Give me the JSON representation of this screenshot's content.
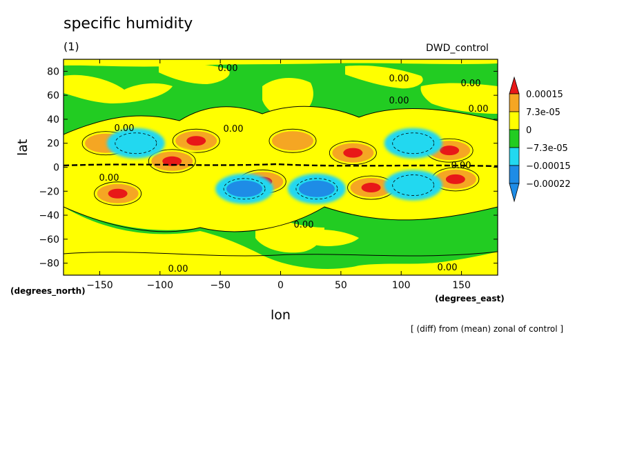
{
  "header": {
    "title": "specific humidity",
    "subtitle": "(1)",
    "run_label": "DWD_control"
  },
  "axes": {
    "xlabel": "lon",
    "ylabel": "lat",
    "x_unit": "(degrees_east)",
    "y_unit": "(degrees_north)"
  },
  "footnote": "[ (diff) from (mean) zonal of control ]",
  "colors": {
    "lt_neg_0.00022": "#1e8ce6",
    "neg_0.00022_to_neg_0.00015": "#1e8ce6",
    "neg_0.00015_to_neg_7.3e-05": "#22d8f0",
    "neg_7.3e-05_to_0": "#22cc22",
    "0_to_7.3e-05": "#ffff00",
    "7.3e-05_to_0.00015": "#f5a623",
    "gt_0.00015": "#e81818"
  },
  "chart_data": {
    "type": "contour",
    "title": "specific humidity",
    "subtitle": "(1)",
    "xlabel": "lon",
    "ylabel": "lat",
    "xlim": [
      -180,
      180
    ],
    "ylim": [
      -90,
      90
    ],
    "x_ticks": [
      -150,
      -100,
      -50,
      0,
      50,
      100,
      150
    ],
    "y_ticks": [
      -80,
      -60,
      -40,
      -20,
      0,
      20,
      40,
      60,
      80
    ],
    "colorbar": {
      "levels": [
        -0.00022,
        -0.00015,
        -7.3e-05,
        0,
        7.3e-05,
        0.00015
      ],
      "labels": [
        "0.00015",
        "7.3e-05",
        "0",
        "−7.3e-05",
        "−0.00015",
        "−0.00022"
      ],
      "extend": "both"
    },
    "contour_labels": [
      "0.00"
    ],
    "anomalies": [
      {
        "lon": -70,
        "lat": 22,
        "sign": "positive",
        "level": "gt_0.00015"
      },
      {
        "lon": -135,
        "lat": -22,
        "sign": "positive",
        "level": "gt_0.00015"
      },
      {
        "lon": -90,
        "lat": 5,
        "sign": "positive",
        "level": "gt_0.00015"
      },
      {
        "lon": -15,
        "lat": -12,
        "sign": "positive",
        "level": "gt_0.00015"
      },
      {
        "lon": 75,
        "lat": -17,
        "sign": "positive",
        "level": "gt_0.00015"
      },
      {
        "lon": 145,
        "lat": -10,
        "sign": "positive",
        "level": "gt_0.00015"
      },
      {
        "lon": 140,
        "lat": 14,
        "sign": "positive",
        "level": "gt_0.00015"
      },
      {
        "lon": 10,
        "lat": 22,
        "sign": "positive",
        "level": "7.3e-05_to_0.00015"
      },
      {
        "lon": -145,
        "lat": 20,
        "sign": "positive",
        "level": "7.3e-05_to_0.00015"
      },
      {
        "lon": 60,
        "lat": 12,
        "sign": "positive",
        "level": "gt_0.00015"
      },
      {
        "lon": -30,
        "lat": -18,
        "sign": "negative",
        "level": "neg_0.00022_to_neg_0.00015"
      },
      {
        "lon": 30,
        "lat": -18,
        "sign": "negative",
        "level": "neg_0.00022_to_neg_0.00015"
      },
      {
        "lon": -120,
        "lat": 20,
        "sign": "negative",
        "level": "neg_0.00015_to_neg_7.3e-05"
      },
      {
        "lon": 110,
        "lat": 20,
        "sign": "negative",
        "level": "neg_0.00015_to_neg_7.3e-05"
      },
      {
        "lon": 110,
        "lat": -15,
        "sign": "negative",
        "level": "neg_0.00015_to_neg_7.3e-05"
      }
    ]
  }
}
